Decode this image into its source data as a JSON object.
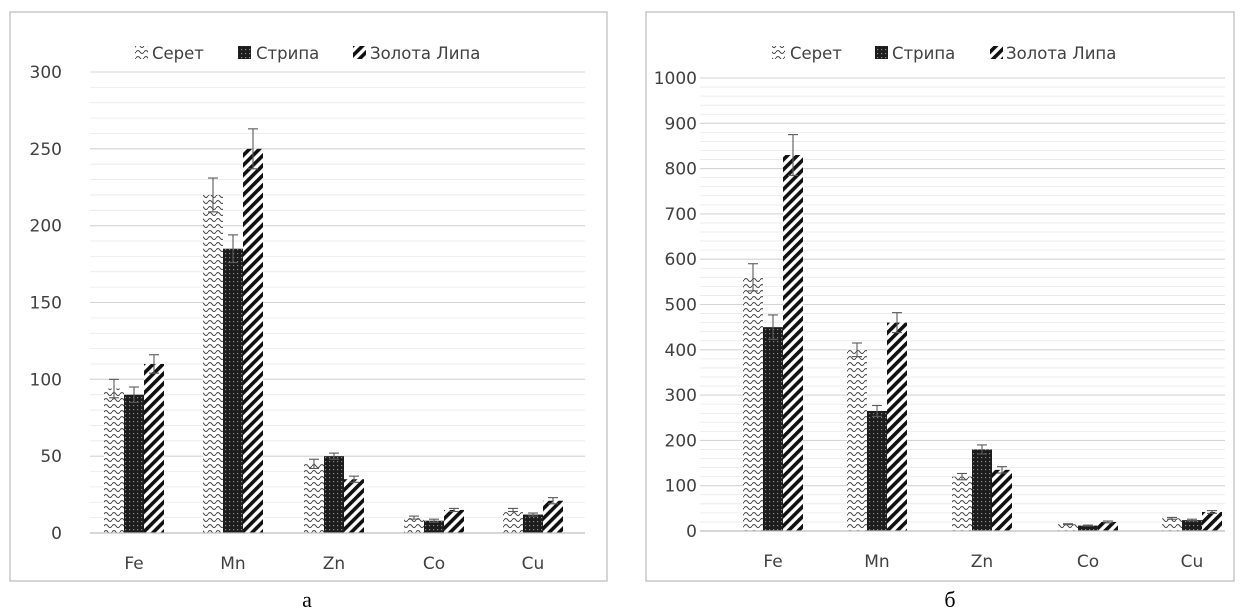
{
  "colors": {
    "serie_seret": "#4a4a4a",
    "serie_stryp": "#1c1c1c",
    "serie_zlata": "#111111",
    "grid": "#d9d9d9",
    "axis": "#bfbfbf",
    "frame": "#bfbfbf"
  },
  "chart_data": [
    {
      "type": "bar",
      "caption": "а",
      "categories": [
        "Fe",
        "Mn",
        "Zn",
        "Co",
        "Cu"
      ],
      "series": [
        {
          "name": "Серет",
          "pattern": "waves",
          "values": [
            94,
            220,
            45,
            10,
            15
          ],
          "errors": [
            6,
            11,
            3,
            1,
            1
          ]
        },
        {
          "name": "Стрипа",
          "pattern": "dark-dots",
          "values": [
            90,
            185,
            50,
            8,
            12
          ],
          "errors": [
            5,
            9,
            2,
            1,
            1
          ]
        },
        {
          "name": "Золота Липа",
          "pattern": "diagonal",
          "values": [
            110,
            250,
            35,
            15,
            21
          ],
          "errors": [
            6,
            13,
            2,
            1,
            2
          ]
        }
      ],
      "ylim": [
        0,
        300
      ],
      "yticks": [
        0,
        50,
        100,
        150,
        200,
        250,
        300
      ],
      "minor_grid_step": 10,
      "grid": true,
      "legend": "top-center"
    },
    {
      "type": "bar",
      "caption": "б",
      "categories": [
        "Fe",
        "Mn",
        "Zn",
        "Co",
        "Cu"
      ],
      "series": [
        {
          "name": "Серет",
          "pattern": "waves",
          "values": [
            560,
            400,
            120,
            15,
            28
          ],
          "errors": [
            30,
            15,
            7,
            1,
            2
          ]
        },
        {
          "name": "Стрипа",
          "pattern": "dark-dots",
          "values": [
            450,
            265,
            180,
            12,
            24
          ],
          "errors": [
            27,
            12,
            10,
            1,
            2
          ]
        },
        {
          "name": "Золота Липа",
          "pattern": "diagonal",
          "values": [
            830,
            460,
            135,
            20,
            42
          ],
          "errors": [
            45,
            22,
            7,
            2,
            3
          ]
        }
      ],
      "ylim": [
        0,
        1000
      ],
      "yticks": [
        0,
        100,
        200,
        300,
        400,
        500,
        600,
        700,
        800,
        900,
        1000
      ],
      "minor_grid_step": 20,
      "grid": true,
      "legend": "top-center"
    }
  ]
}
